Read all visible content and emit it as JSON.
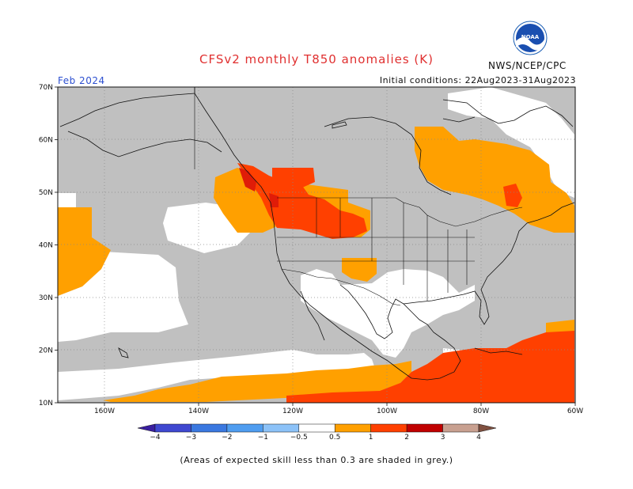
{
  "header": {
    "title": "CFSv2 monthly T850 anomalies (K)",
    "month": "Feb 2024",
    "initial_conditions": "Initial conditions: 22Aug2023-31Aug2023",
    "agency": "NWS/NCEP/CPC",
    "logo": "noaa-logo",
    "logo_text": "NOAA"
  },
  "map": {
    "lat_labels": [
      "70N",
      "60N",
      "50N",
      "40N",
      "30N",
      "20N",
      "10N"
    ],
    "lon_labels": [
      "160W",
      "140W",
      "120W",
      "100W",
      "80W",
      "60W"
    ],
    "grey_meaning": "low skill",
    "colors": {
      "grey": "#c0c0c0",
      "orange": "#ffa000",
      "red": "#ff4000",
      "darkred": "#e01c08",
      "white": "#ffffff"
    }
  },
  "colorbar": {
    "labels": [
      "−4",
      "−3",
      "−2",
      "−1",
      "−0.5",
      "0.5",
      "1",
      "2",
      "3",
      "4"
    ],
    "colors": [
      "#3a1fa0",
      "#3f48d0",
      "#3a78e0",
      "#4f9df0",
      "#8cc2f8",
      "#ffffff",
      "#ffa000",
      "#ff4000",
      "#c00000",
      "#c8a090",
      "#805040"
    ]
  },
  "footnote": "(Areas of expected skill less than 0.3 are shaded in grey.)"
}
